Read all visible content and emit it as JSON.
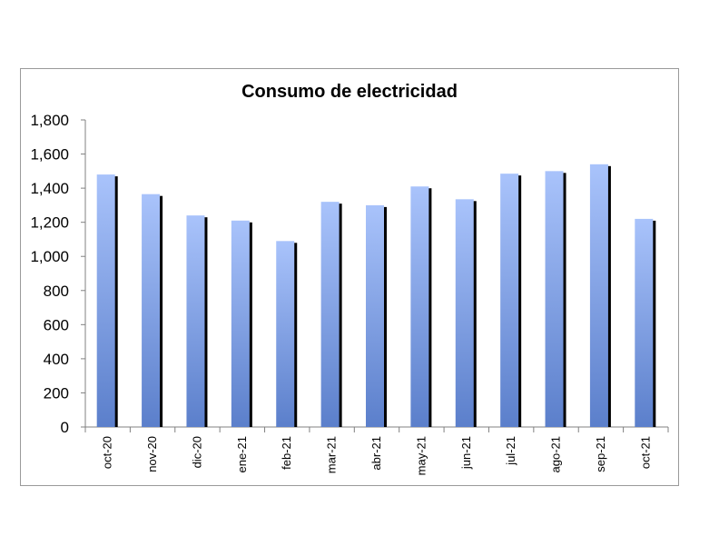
{
  "chart_data": {
    "type": "bar",
    "title": "Consumo de electricidad",
    "xlabel": "",
    "ylabel": "",
    "categories": [
      "oct-20",
      "nov-20",
      "dic-20",
      "ene-21",
      "feb-21",
      "mar-21",
      "abr-21",
      "may-21",
      "jun-21",
      "jul-21",
      "ago-21",
      "sep-21",
      "oct-21"
    ],
    "series": [
      {
        "values": [
          1480,
          1365,
          1240,
          1210,
          1090,
          1320,
          1300,
          1410,
          1335,
          1485,
          1500,
          1540,
          1220
        ]
      }
    ],
    "ylim": [
      0,
      1800
    ],
    "yticks": [
      "0",
      "200",
      "400",
      "600",
      "800",
      "1,000",
      "1,200",
      "1,400",
      "1,600",
      "1,800"
    ],
    "ytick_values": [
      0,
      200,
      400,
      600,
      800,
      1000,
      1200,
      1400,
      1600,
      1800
    ],
    "grid": false,
    "legend": "none",
    "colors": {
      "bar_top": "#a9c3fb",
      "bar_bottom": "#5b7fcb",
      "bar_shadow": "#000000",
      "axis": "#808080"
    }
  }
}
